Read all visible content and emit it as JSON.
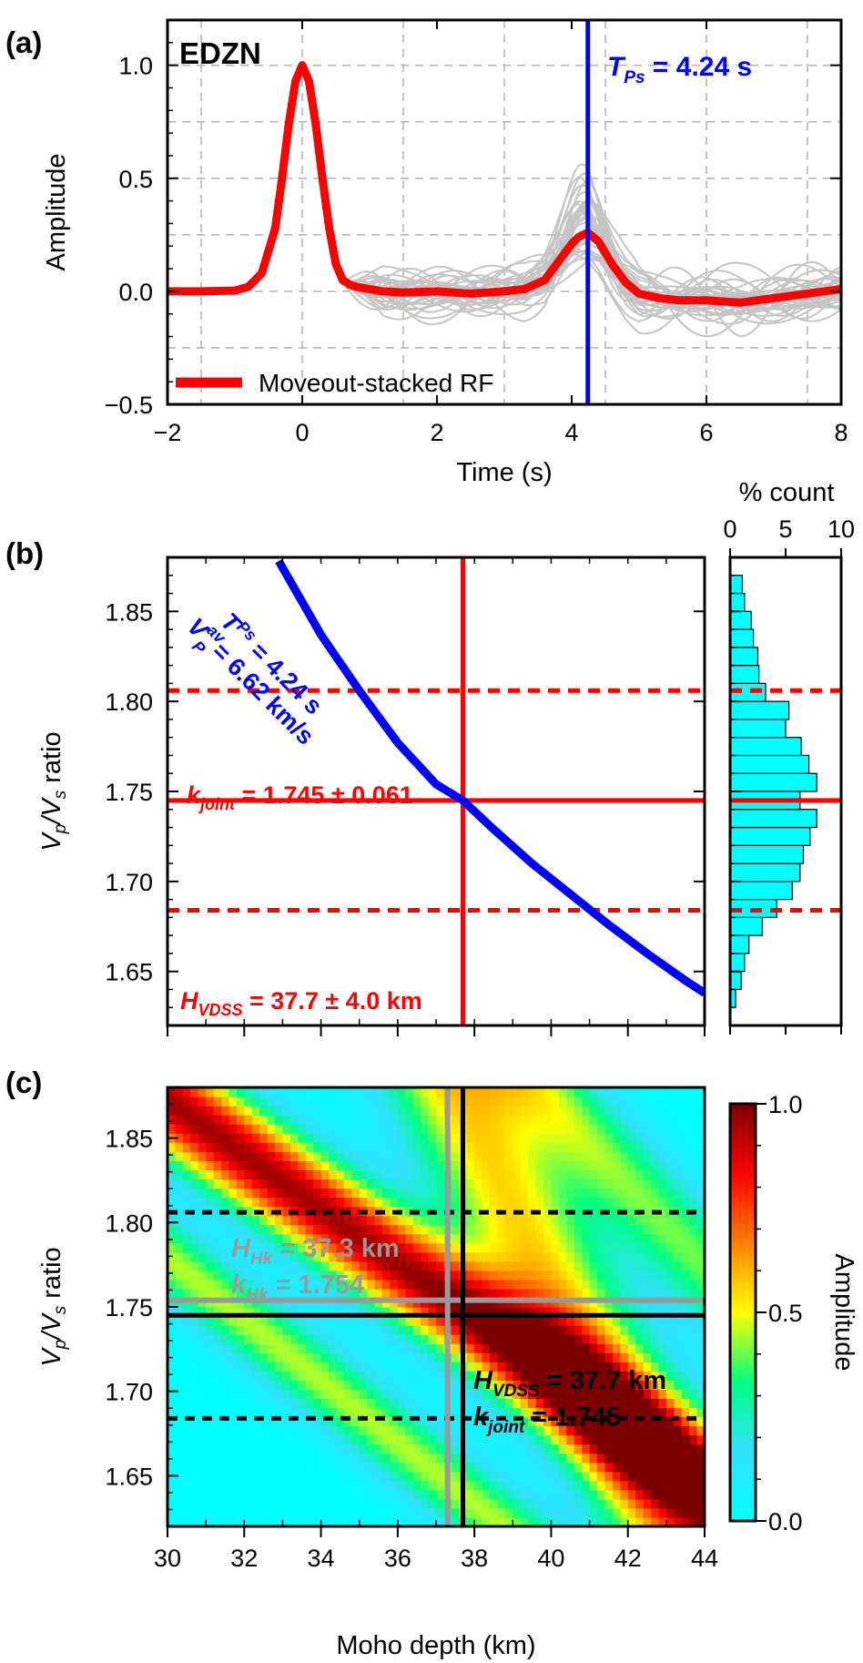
{
  "chart_data": [
    {
      "panel_label": "(a)",
      "type": "line",
      "station": "EDZN",
      "xlabel": "Time (s)",
      "ylabel": "Amplitude",
      "xlim": [
        -2,
        8
      ],
      "ylim": [
        -0.5,
        1.2
      ],
      "xticks": [
        -2,
        0,
        2,
        4,
        6,
        8
      ],
      "xtick_labels": [
        "−2",
        "0",
        "2",
        "4",
        "6",
        "8"
      ],
      "yticks": [
        -0.5,
        0.0,
        0.5,
        1.0
      ],
      "ytick_labels": [
        "−0.5",
        "0.0",
        "0.5",
        "1.0"
      ],
      "grid": true,
      "legend": {
        "label": "Moveout-stacked RF",
        "placement": "bottom-left"
      },
      "series": [
        {
          "name": "Moveout-stacked RF",
          "color": "#ff0000",
          "x": [
            -2.0,
            -1.5,
            -1.0,
            -0.8,
            -0.6,
            -0.4,
            -0.3,
            -0.2,
            -0.1,
            0.0,
            0.1,
            0.2,
            0.3,
            0.4,
            0.5,
            0.6,
            0.7,
            0.8,
            1.0,
            1.2,
            1.5,
            2.0,
            2.5,
            3.0,
            3.3,
            3.6,
            3.8,
            4.0,
            4.1,
            4.24,
            4.4,
            4.6,
            4.8,
            5.0,
            5.3,
            5.6,
            6.0,
            6.5,
            7.0,
            7.5,
            8.0
          ],
          "y": [
            0.0,
            0.0,
            0.003,
            0.02,
            0.08,
            0.28,
            0.5,
            0.74,
            0.93,
            1.0,
            0.93,
            0.74,
            0.5,
            0.28,
            0.12,
            0.05,
            0.03,
            0.02,
            0.01,
            0.0,
            -0.005,
            0.0,
            -0.01,
            0.0,
            0.01,
            0.05,
            0.13,
            0.21,
            0.24,
            0.26,
            0.22,
            0.12,
            0.04,
            -0.01,
            -0.03,
            -0.04,
            -0.04,
            -0.05,
            -0.03,
            -0.01,
            0.01
          ]
        }
      ],
      "vline": {
        "x": 4.24,
        "color": "#0000ff",
        "label_prefix": "T",
        "label_sub": "Ps",
        "label_rest": " = 4.24 s"
      }
    },
    {
      "panel_label": "(b)",
      "type": "line",
      "xlabel": "",
      "ylabel_main": "V",
      "ylabel_sub1": "p",
      "ylabel_mid": "/V",
      "ylabel_sub2": "s",
      "ylabel_tail": " ratio",
      "xlim": [
        30,
        44
      ],
      "ylim": [
        1.62,
        1.88
      ],
      "yticks": [
        1.65,
        1.7,
        1.75,
        1.8,
        1.85
      ],
      "ytick_labels": [
        "1.65",
        "1.70",
        "1.75",
        "1.80",
        "1.85"
      ],
      "curve": {
        "color": "#0000ff",
        "x": [
          32.9,
          34.0,
          35.0,
          36.0,
          37.0,
          37.7,
          38.5,
          39.5,
          40.5,
          41.5,
          42.5,
          43.5,
          44.0
        ],
        "y": [
          1.878,
          1.837,
          1.806,
          1.777,
          1.754,
          1.745,
          1.729,
          1.71,
          1.693,
          1.676,
          1.66,
          1.645,
          1.638
        ],
        "label_l1_prefix": "T",
        "label_l1_sub": "Ps",
        "label_l1_rest": " = 4.24 s",
        "label_l2_prefix": "V",
        "label_l2_sub": "P",
        "label_l2_sup": "av",
        "label_l2_rest": " = 6.62 km/s"
      },
      "k_joint": 1.745,
      "k_upper": 1.806,
      "k_lower": 1.684,
      "H_vdss": 37.7,
      "k_label_prefix": "k",
      "k_label_sub": "joint",
      "k_label_rest": " = 1.745 ± 0.061",
      "H_label_prefix": "H",
      "H_label_sub": "VDSS",
      "H_label_rest": " = 37.7 ± 4.0 km",
      "histogram": {
        "xlabel": "% count",
        "xlim": [
          0,
          10
        ],
        "xticks": [
          0,
          5,
          10
        ],
        "xtick_labels": [
          "0",
          "5",
          "10"
        ],
        "color": "#00ffff",
        "bin_width": 0.01,
        "bin_centers": [
          1.635,
          1.645,
          1.655,
          1.665,
          1.675,
          1.685,
          1.695,
          1.705,
          1.715,
          1.725,
          1.735,
          1.745,
          1.755,
          1.765,
          1.775,
          1.785,
          1.795,
          1.805,
          1.815,
          1.825,
          1.835,
          1.845,
          1.855,
          1.865
        ],
        "percent": [
          0.5,
          1.0,
          1.3,
          1.7,
          2.9,
          4.2,
          5.6,
          6.3,
          6.6,
          7.2,
          7.8,
          6.3,
          7.8,
          7.1,
          6.4,
          5.0,
          5.3,
          3.2,
          2.6,
          2.5,
          2.1,
          1.9,
          1.3,
          1.1
        ]
      }
    },
    {
      "panel_label": "(c)",
      "type": "heatmap",
      "xlabel": "Moho depth (km)",
      "ylabel_main": "V",
      "ylabel_sub1": "p",
      "ylabel_mid": "/V",
      "ylabel_sub2": "s",
      "ylabel_tail": " ratio",
      "xlim": [
        30,
        44
      ],
      "ylim": [
        1.62,
        1.88
      ],
      "xticks": [
        30,
        32,
        34,
        36,
        38,
        40,
        42,
        44
      ],
      "xtick_labels": [
        "30",
        "32",
        "34",
        "36",
        "38",
        "40",
        "42",
        "44"
      ],
      "yticks": [
        1.65,
        1.7,
        1.75,
        1.8,
        1.85
      ],
      "ytick_labels": [
        "1.65",
        "1.70",
        "1.75",
        "1.80",
        "1.85"
      ],
      "colorbar": {
        "label": "Amplitude",
        "range": [
          0.0,
          1.0
        ],
        "ticks": [
          0.0,
          0.5,
          1.0
        ],
        "tick_labels": [
          "0.0",
          "0.5",
          "1.0"
        ],
        "colors": [
          "#00ffff",
          "#32e1ff",
          "#00ff80",
          "#ffff00",
          "#ff8000",
          "#ff0000",
          "#7a0000"
        ]
      },
      "hk": {
        "H": 37.3,
        "k": 1.754,
        "color": "#999999",
        "H_prefix": "H",
        "H_sub": "Hk",
        "H_rest": " = 37.3 km",
        "k_prefix": "k",
        "k_sub": "Hk",
        "k_rest": " = 1.754"
      },
      "vdss": {
        "H": 37.7,
        "k": 1.745,
        "color": "#000000",
        "H_prefix": "H",
        "H_sub": "VDSS",
        "H_rest": " = 37.7 km",
        "k_prefix": "k",
        "k_sub": "joint",
        "k_rest": " = 1.745"
      },
      "k_upper": 1.806,
      "k_lower": 1.684
    }
  ]
}
